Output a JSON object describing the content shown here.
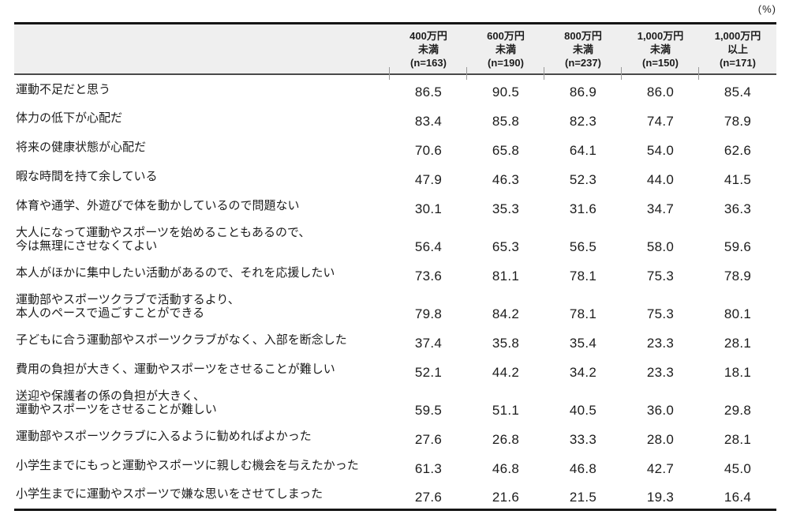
{
  "unit_label": "(%)",
  "chart_data": {
    "type": "table",
    "title": "",
    "unit": "%",
    "legend_position": "none",
    "columns": [
      {
        "line1": "400万円",
        "line2": "未満",
        "n_label": "(n=163)"
      },
      {
        "line1": "600万円",
        "line2": "未満",
        "n_label": "(n=190)"
      },
      {
        "line1": "800万円",
        "line2": "未満",
        "n_label": "(n=237)"
      },
      {
        "line1": "1,000万円",
        "line2": "未満",
        "n_label": "(n=150)"
      },
      {
        "line1": "1,000万円",
        "line2": "以上",
        "n_label": "(n=171)"
      }
    ],
    "rows": [
      {
        "label": "運動不足だと思う",
        "values": [
          "86.5",
          "90.5",
          "86.9",
          "86.0",
          "85.4"
        ]
      },
      {
        "label": "体力の低下が心配だ",
        "values": [
          "83.4",
          "85.8",
          "82.3",
          "74.7",
          "78.9"
        ]
      },
      {
        "label": "将来の健康状態が心配だ",
        "values": [
          "70.6",
          "65.8",
          "64.1",
          "54.0",
          "62.6"
        ]
      },
      {
        "label": "暇な時間を持て余している",
        "values": [
          "47.9",
          "46.3",
          "52.3",
          "44.0",
          "41.5"
        ]
      },
      {
        "label": "体育や通学、外遊びで体を動かしているので問題ない",
        "values": [
          "30.1",
          "35.3",
          "31.6",
          "34.7",
          "36.3"
        ]
      },
      {
        "label": "大人になって運動やスポーツを始めることもあるので、\n今は無理にさせなくてよい",
        "values": [
          "56.4",
          "65.3",
          "56.5",
          "58.0",
          "59.6"
        ]
      },
      {
        "label": "本人がほかに集中したい活動があるので、それを応援したい",
        "values": [
          "73.6",
          "81.1",
          "78.1",
          "75.3",
          "78.9"
        ]
      },
      {
        "label": "運動部やスポーツクラブで活動するより、\n本人のペースで過ごすことができる",
        "values": [
          "79.8",
          "84.2",
          "78.1",
          "75.3",
          "80.1"
        ]
      },
      {
        "label": "子どもに合う運動部やスポーツクラブがなく、入部を断念した",
        "values": [
          "37.4",
          "35.8",
          "35.4",
          "23.3",
          "28.1"
        ]
      },
      {
        "label": "費用の負担が大きく、運動やスポーツをさせることが難しい",
        "values": [
          "52.1",
          "44.2",
          "34.2",
          "23.3",
          "18.1"
        ]
      },
      {
        "label": "送迎や保護者の係の負担が大きく、\n運動やスポーツをさせることが難しい",
        "values": [
          "59.5",
          "51.1",
          "40.5",
          "36.0",
          "29.8"
        ]
      },
      {
        "label": "運動部やスポーツクラブに入るように勧めればよかった",
        "values": [
          "27.6",
          "26.8",
          "33.3",
          "28.0",
          "28.1"
        ]
      },
      {
        "label": "小学生までにもっと運動やスポーツに親しむ機会を与えたかった",
        "values": [
          "61.3",
          "46.8",
          "46.8",
          "42.7",
          "45.0"
        ]
      },
      {
        "label": "小学生までに運動やスポーツで嫌な思いをさせてしまった",
        "values": [
          "27.6",
          "21.6",
          "21.5",
          "19.3",
          "16.4"
        ]
      }
    ]
  }
}
